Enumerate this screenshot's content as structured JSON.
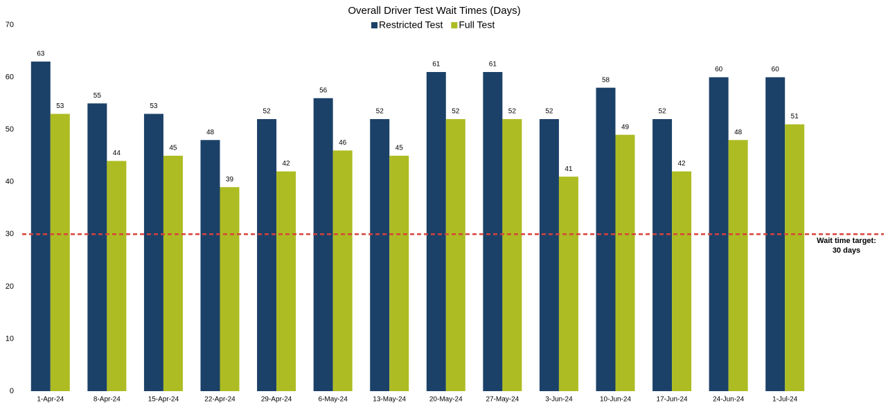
{
  "chart_data": {
    "type": "bar",
    "title": "Overall Driver Test Wait Times (Days)",
    "categories": [
      "1-Apr-24",
      "8-Apr-24",
      "15-Apr-24",
      "22-Apr-24",
      "29-Apr-24",
      "6-May-24",
      "13-May-24",
      "20-May-24",
      "27-May-24",
      "3-Jun-24",
      "10-Jun-24",
      "17-Jun-24",
      "24-Jun-24",
      "1-Jul-24"
    ],
    "series": [
      {
        "name": "Restricted Test",
        "color": "#1b4168",
        "values": [
          63,
          55,
          53,
          48,
          52,
          56,
          52,
          61,
          61,
          52,
          58,
          52,
          60,
          60
        ]
      },
      {
        "name": "Full Test",
        "color": "#adbc22",
        "values": [
          53,
          44,
          45,
          39,
          42,
          46,
          45,
          52,
          52,
          41,
          49,
          42,
          48,
          51
        ]
      }
    ],
    "ylim": [
      0,
      70
    ],
    "yticks": [
      0,
      10,
      20,
      30,
      40,
      50,
      60,
      70
    ],
    "grid": false,
    "legend": "top",
    "target": {
      "value": 30,
      "color": "#d9413b",
      "label": [
        "Wait time target:",
        "30 days"
      ]
    }
  }
}
